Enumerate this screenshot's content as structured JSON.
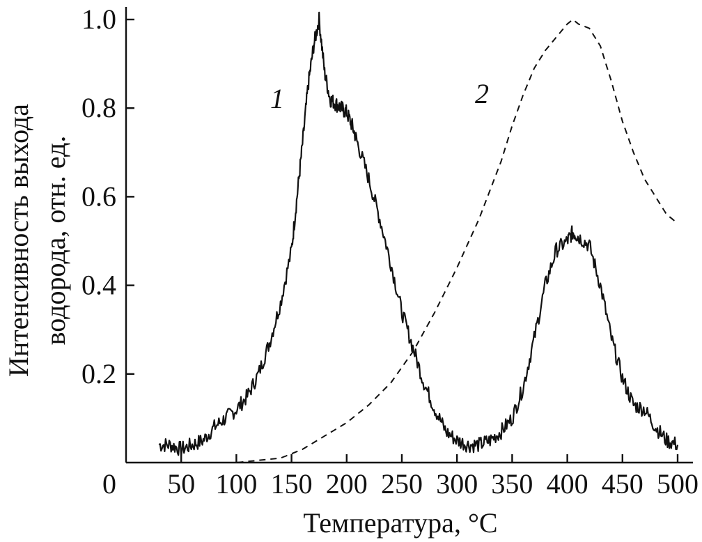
{
  "chart_data": {
    "type": "line",
    "xlabel": "Температура, °C",
    "ylabel_line1": "Интенсивность выхода",
    "ylabel_line2": "водорода, отн. ед.",
    "xlim": [
      0,
      500
    ],
    "ylim": [
      0,
      1.0
    ],
    "x_ticks": [
      0,
      50,
      100,
      150,
      200,
      250,
      300,
      350,
      400,
      450,
      500
    ],
    "x_tick_labels": [
      "0",
      "50",
      "100",
      "150",
      "200",
      "250",
      "300",
      "350",
      "400",
      "450",
      "500"
    ],
    "y_ticks": [
      0.2,
      0.4,
      0.6,
      0.8,
      1.0
    ],
    "y_tick_labels": [
      "0.2",
      "0.4",
      "0.6",
      "0.8",
      "1.0"
    ],
    "grid": false,
    "legend": "none",
    "series": [
      {
        "name": "1",
        "style": "solid",
        "color": "#111111",
        "x": [
          30,
          40,
          50,
          60,
          70,
          80,
          90,
          100,
          110,
          120,
          130,
          140,
          150,
          155,
          160,
          165,
          170,
          175,
          180,
          185,
          190,
          195,
          200,
          205,
          210,
          220,
          230,
          240,
          250,
          260,
          270,
          280,
          290,
          300,
          310,
          320,
          330,
          340,
          350,
          360,
          370,
          380,
          390,
          400,
          405,
          410,
          420,
          430,
          440,
          450,
          460,
          470,
          480,
          490,
          500
        ],
        "y": [
          0.04,
          0.04,
          0.03,
          0.04,
          0.05,
          0.08,
          0.1,
          0.12,
          0.15,
          0.2,
          0.27,
          0.36,
          0.48,
          0.6,
          0.72,
          0.85,
          0.94,
          1.0,
          0.88,
          0.82,
          0.81,
          0.8,
          0.79,
          0.76,
          0.72,
          0.64,
          0.55,
          0.45,
          0.34,
          0.26,
          0.18,
          0.12,
          0.07,
          0.05,
          0.04,
          0.04,
          0.05,
          0.07,
          0.1,
          0.17,
          0.28,
          0.4,
          0.48,
          0.5,
          0.52,
          0.51,
          0.49,
          0.4,
          0.28,
          0.19,
          0.13,
          0.12,
          0.08,
          0.05,
          0.04
        ]
      },
      {
        "name": "2",
        "style": "dashed",
        "color": "#111111",
        "x": [
          30,
          50,
          75,
          100,
          120,
          140,
          150,
          160,
          170,
          180,
          190,
          200,
          220,
          240,
          260,
          280,
          300,
          320,
          340,
          350,
          360,
          370,
          380,
          390,
          400,
          405,
          410,
          420,
          430,
          440,
          450,
          460,
          470,
          480,
          490,
          500
        ],
        "y": [
          0.0,
          0.0,
          0.0,
          0.0,
          0.005,
          0.01,
          0.02,
          0.03,
          0.045,
          0.06,
          0.075,
          0.09,
          0.13,
          0.18,
          0.25,
          0.34,
          0.44,
          0.55,
          0.68,
          0.76,
          0.83,
          0.89,
          0.93,
          0.96,
          0.99,
          1.0,
          0.99,
          0.98,
          0.94,
          0.86,
          0.77,
          0.7,
          0.64,
          0.6,
          0.56,
          0.54
        ]
      }
    ]
  }
}
